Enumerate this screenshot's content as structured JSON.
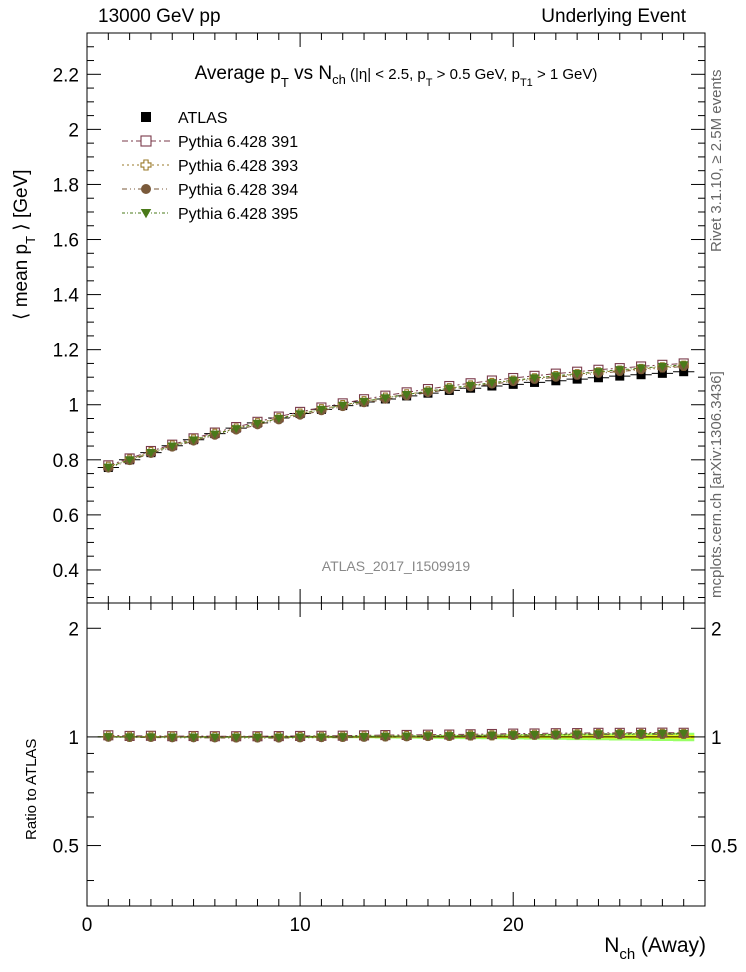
{
  "header": {
    "left": "13000 GeV pp",
    "right": "Underlying Event"
  },
  "side": {
    "rivet": "Rivet 3.1.10, ≥ 2.5M events",
    "mcplots": "mcplots.cern.ch [arXiv:1306.3436]"
  },
  "chart_data": {
    "type": "scatter",
    "title": "Average pT vs Nch (|η| < 2.5, pT > 0.5 GeV, pT1 > 1 GeV)",
    "title_parts": {
      "a": "Average p",
      "b": "T",
      "c": " vs N",
      "d": "ch",
      "e": " (|η| < 2.5, p",
      "f": "T",
      "g": " > 0.5 GeV, p",
      "h": "T1",
      "i": " > 1 GeV)"
    },
    "ylabel": "⟨ mean pT ⟩ [GeV]",
    "ylabel_parts": {
      "a": "⟨ mean p",
      "b": "T",
      "c": " ⟩ [GeV]"
    },
    "xlabel": "Nch (Away)",
    "xlabel_parts": {
      "a": "N",
      "b": "ch",
      "c": " (Away)"
    },
    "ratio_ylabel": "Ratio to ATLAS",
    "analysis": "ATLAS_2017_I1509919",
    "xlim": [
      0,
      29
    ],
    "ylim": [
      0.28,
      2.35
    ],
    "ratio_ylim": [
      0.34,
      2.35
    ],
    "x_ticks": [
      "0",
      "10",
      "20"
    ],
    "x_tick_values": [
      0,
      10,
      20
    ],
    "y_ticks": [
      "0.4",
      "0.6",
      "0.8",
      "1",
      "1.2",
      "1.4",
      "1.6",
      "1.8",
      "2",
      "2.2"
    ],
    "y_tick_values": [
      0.4,
      0.6,
      0.8,
      1.0,
      1.2,
      1.4,
      1.6,
      1.8,
      2.0,
      2.2
    ],
    "ratio_ticks": [
      "0.5",
      "1",
      "2"
    ],
    "ratio_tick_values": [
      0.5,
      1,
      2
    ],
    "x": [
      1,
      2,
      3,
      4,
      5,
      6,
      7,
      8,
      9,
      10,
      11,
      12,
      13,
      14,
      15,
      16,
      17,
      18,
      19,
      20,
      21,
      22,
      23,
      24,
      25,
      26,
      27,
      28
    ],
    "series": [
      {
        "name": "ATLAS",
        "marker": "square-filled",
        "color": "#000000",
        "values": [
          0.772,
          0.8,
          0.826,
          0.851,
          0.873,
          0.895,
          0.915,
          0.934,
          0.952,
          0.968,
          0.983,
          0.997,
          1.01,
          1.021,
          1.032,
          1.042,
          1.052,
          1.06,
          1.068,
          1.074,
          1.081,
          1.087,
          1.093,
          1.098,
          1.104,
          1.109,
          1.114,
          1.12
        ]
      },
      {
        "name": "Pythia 6.428 391",
        "marker": "square-open",
        "color": "#7a3a4a",
        "values": [
          0.78,
          0.805,
          0.832,
          0.855,
          0.878,
          0.899,
          0.919,
          0.938,
          0.957,
          0.974,
          0.99,
          1.005,
          1.02,
          1.033,
          1.045,
          1.057,
          1.068,
          1.078,
          1.088,
          1.097,
          1.105,
          1.113,
          1.12,
          1.127,
          1.133,
          1.139,
          1.145,
          1.15
        ]
      },
      {
        "name": "Pythia 6.428 393",
        "marker": "cross-open",
        "color": "#9a7a2a",
        "values": [
          0.775,
          0.801,
          0.828,
          0.852,
          0.874,
          0.895,
          0.914,
          0.933,
          0.951,
          0.968,
          0.984,
          0.999,
          1.013,
          1.026,
          1.038,
          1.049,
          1.06,
          1.07,
          1.079,
          1.088,
          1.096,
          1.104,
          1.111,
          1.118,
          1.124,
          1.13,
          1.136,
          1.142
        ]
      },
      {
        "name": "Pythia 6.428 394",
        "marker": "circle-filled",
        "color": "#7a5a3a",
        "values": [
          0.77,
          0.797,
          0.823,
          0.846,
          0.868,
          0.889,
          0.908,
          0.927,
          0.945,
          0.962,
          0.978,
          0.993,
          1.007,
          1.02,
          1.032,
          1.044,
          1.055,
          1.065,
          1.075,
          1.084,
          1.092,
          1.1,
          1.107,
          1.114,
          1.121,
          1.127,
          1.133,
          1.139
        ]
      },
      {
        "name": "Pythia 6.428 395",
        "marker": "triangle-down-filled",
        "color": "#4a7a1a",
        "values": [
          0.773,
          0.8,
          0.826,
          0.85,
          0.872,
          0.893,
          0.913,
          0.932,
          0.95,
          0.967,
          0.983,
          0.998,
          1.012,
          1.025,
          1.037,
          1.049,
          1.06,
          1.07,
          1.08,
          1.089,
          1.097,
          1.105,
          1.113,
          1.12,
          1.127,
          1.133,
          1.139,
          1.145
        ]
      }
    ]
  },
  "colors": {
    "band_inner": "#ffff00",
    "band_outer": "#99ff66",
    "ref_line": "#000000",
    "axis": "#000000",
    "muted_text": "#888888"
  }
}
